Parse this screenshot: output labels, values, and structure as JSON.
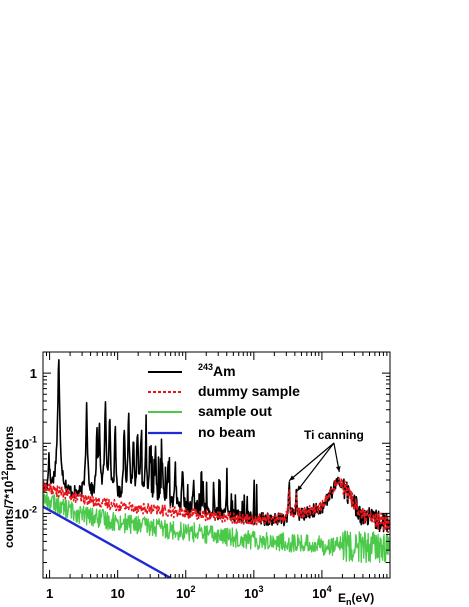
{
  "chart_data": {
    "type": "line",
    "x_scale": "log",
    "y_scale": "log",
    "xlim": [
      0.8,
      100000
    ],
    "ylim": [
      0.0012,
      2.0
    ],
    "xlabel": {
      "main": "E",
      "sub": "n",
      "unit": "(eV)"
    },
    "ylabel": {
      "prefix": "counts/7*10",
      "sup": "12",
      "suffix": "protons"
    },
    "x_ticks": [
      {
        "value": 1,
        "label": "1"
      },
      {
        "value": 10,
        "label": "10"
      },
      {
        "value": 100,
        "base": "10",
        "exp": "2"
      },
      {
        "value": 1000,
        "base": "10",
        "exp": "3"
      },
      {
        "value": 10000,
        "base": "10",
        "exp": "4"
      }
    ],
    "y_ticks": [
      {
        "value": 1,
        "label": "1"
      },
      {
        "value": 0.1,
        "base": "10",
        "exp": "-1"
      },
      {
        "value": 0.01,
        "base": "10",
        "exp": "-2"
      }
    ],
    "legend_position": "top-center",
    "series": [
      {
        "name": "Am",
        "name_sup": "243",
        "color": "#000000",
        "style": "solid",
        "baseline": [
          [
            0.8,
            0.022
          ],
          [
            3,
            0.017
          ],
          [
            10,
            0.014
          ],
          [
            100,
            0.011
          ],
          [
            1000,
            0.0085
          ],
          [
            3000,
            0.008
          ],
          [
            10000,
            0.012
          ],
          [
            18000,
            0.03
          ],
          [
            40000,
            0.009
          ],
          [
            100000,
            0.007
          ]
        ],
        "resonances": [
          [
            0.98,
            0.08
          ],
          [
            1.36,
            1.6
          ],
          [
            3.5,
            0.38
          ],
          [
            4.95,
            0.14
          ],
          [
            5.4,
            0.2
          ],
          [
            6.6,
            0.35
          ],
          [
            7.6,
            0.26
          ],
          [
            9.2,
            0.15
          ],
          [
            12.5,
            0.18
          ],
          [
            14.5,
            0.23
          ],
          [
            17.0,
            0.12
          ],
          [
            19.5,
            0.16
          ],
          [
            22.0,
            0.1
          ],
          [
            26.0,
            0.11
          ],
          [
            30.0,
            0.09
          ],
          [
            36.0,
            0.08
          ],
          [
            45.0,
            0.07
          ],
          [
            55.0,
            0.06
          ],
          [
            70.0,
            0.05
          ],
          [
            90.0,
            0.045
          ],
          [
            130.0,
            0.03
          ],
          [
            180.0,
            0.025
          ],
          [
            260.0,
            0.02
          ],
          [
            400.0,
            0.016
          ],
          [
            3300.0,
            0.025
          ],
          [
            4200.0,
            0.018
          ]
        ]
      },
      {
        "name": "dummy sample",
        "color": "#e8161b",
        "style": "dashed",
        "baseline": [
          [
            0.8,
            0.024
          ],
          [
            3,
            0.016
          ],
          [
            10,
            0.013
          ],
          [
            100,
            0.01
          ],
          [
            1000,
            0.0082
          ],
          [
            3000,
            0.0085
          ],
          [
            10000,
            0.0125
          ],
          [
            18000,
            0.031
          ],
          [
            40000,
            0.009
          ],
          [
            100000,
            0.007
          ]
        ],
        "resonances": [
          [
            3300.0,
            0.024
          ],
          [
            4200.0,
            0.017
          ]
        ]
      },
      {
        "name": "sample out",
        "color": "#4cc94b",
        "style": "solid",
        "baseline": [
          [
            0.8,
            0.016
          ],
          [
            3,
            0.0095
          ],
          [
            10,
            0.0075
          ],
          [
            100,
            0.0055
          ],
          [
            1000,
            0.0042
          ],
          [
            10000,
            0.0035
          ],
          [
            100000,
            0.0032
          ]
        ],
        "resonances": []
      },
      {
        "name": "no beam",
        "color": "#1f2ad6",
        "style": "solid",
        "baseline": [
          [
            0.8,
            0.0125
          ],
          [
            60,
            0.0012
          ]
        ],
        "resonances": []
      }
    ],
    "annotations": [
      {
        "text": "Ti canning",
        "x": 15000,
        "y": 0.115,
        "arrows_to": [
          [
            3300,
            0.024
          ],
          [
            4300,
            0.017
          ],
          [
            18000,
            0.032
          ]
        ]
      }
    ]
  }
}
